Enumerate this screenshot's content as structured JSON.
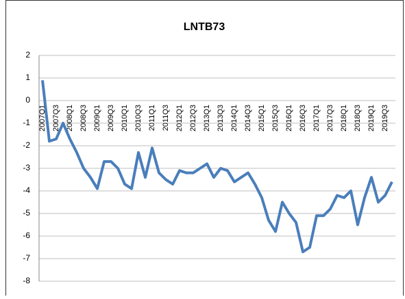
{
  "chart_data": {
    "type": "line",
    "title": "LNTB73",
    "categories": [
      "2007Q1",
      null,
      "2007Q3",
      null,
      "2008Q1",
      null,
      "2008Q3",
      null,
      "2009Q1",
      null,
      "2009Q3",
      null,
      "2010Q1",
      null,
      "2010Q3",
      null,
      "2011Q1",
      null,
      "2011Q3",
      null,
      "2012Q1",
      null,
      "2012Q3",
      null,
      "2013Q1",
      null,
      "2013Q3",
      null,
      "2014Q1",
      null,
      "2014Q3",
      null,
      "2015Q1",
      null,
      "2015Q3",
      null,
      "2016Q1",
      null,
      "2016Q3",
      null,
      "2017Q1",
      null,
      "2017Q3",
      null,
      "2018Q1",
      null,
      "2018Q3",
      null,
      "2019Q1",
      null,
      "2019Q3",
      null
    ],
    "values": [
      0.9,
      -1.8,
      -1.7,
      -1.0,
      -1.7,
      -2.3,
      -3.0,
      -3.4,
      -3.9,
      -2.7,
      -2.7,
      -3.0,
      -3.7,
      -3.9,
      -2.3,
      -3.4,
      -2.1,
      -3.2,
      -3.5,
      -3.7,
      -3.1,
      -3.2,
      -3.2,
      -3.0,
      -2.8,
      -3.4,
      -3.0,
      -3.1,
      -3.6,
      -3.4,
      -3.2,
      -3.7,
      -4.3,
      -5.3,
      -5.8,
      -4.5,
      -5.0,
      -5.4,
      -6.7,
      -6.5,
      -5.1,
      -5.1,
      -4.8,
      -4.2,
      -4.3,
      -4.0,
      -5.5,
      -4.3,
      -3.4,
      -4.5,
      -4.2,
      -3.6
    ],
    "color": "#4a7ebb",
    "ylim": [
      -8,
      2
    ],
    "yticks": [
      -8,
      -7,
      -6,
      -5,
      -4,
      -3,
      -2,
      -1,
      0,
      1,
      2
    ],
    "grid": true
  }
}
